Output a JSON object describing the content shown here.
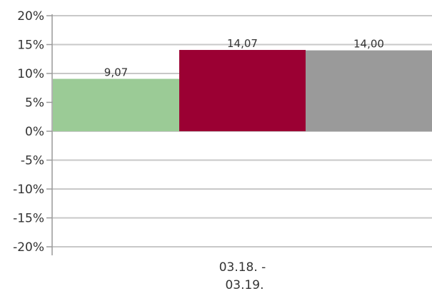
{
  "chart_data": {
    "type": "bar",
    "categories": [
      "03.18. -\n03.19."
    ],
    "series": [
      {
        "values": [
          9.07
        ],
        "label": "9,07",
        "color": "#9bcb96"
      },
      {
        "values": [
          14.07
        ],
        "label": "14,07",
        "color": "#9b0033"
      },
      {
        "values": [
          14.0
        ],
        "label": "14,00",
        "color": "#9a9a9a"
      }
    ],
    "ylim": [
      -20,
      20
    ],
    "yticks": [
      "20%",
      "15%",
      "10%",
      "5%",
      "0%",
      "-5%",
      "-10%",
      "-15%",
      "-20%"
    ],
    "ytick_values": [
      20,
      15,
      10,
      5,
      0,
      -5,
      -10,
      -15,
      -20
    ],
    "grid": true,
    "title": "",
    "xlabel": "",
    "ylabel": ""
  }
}
